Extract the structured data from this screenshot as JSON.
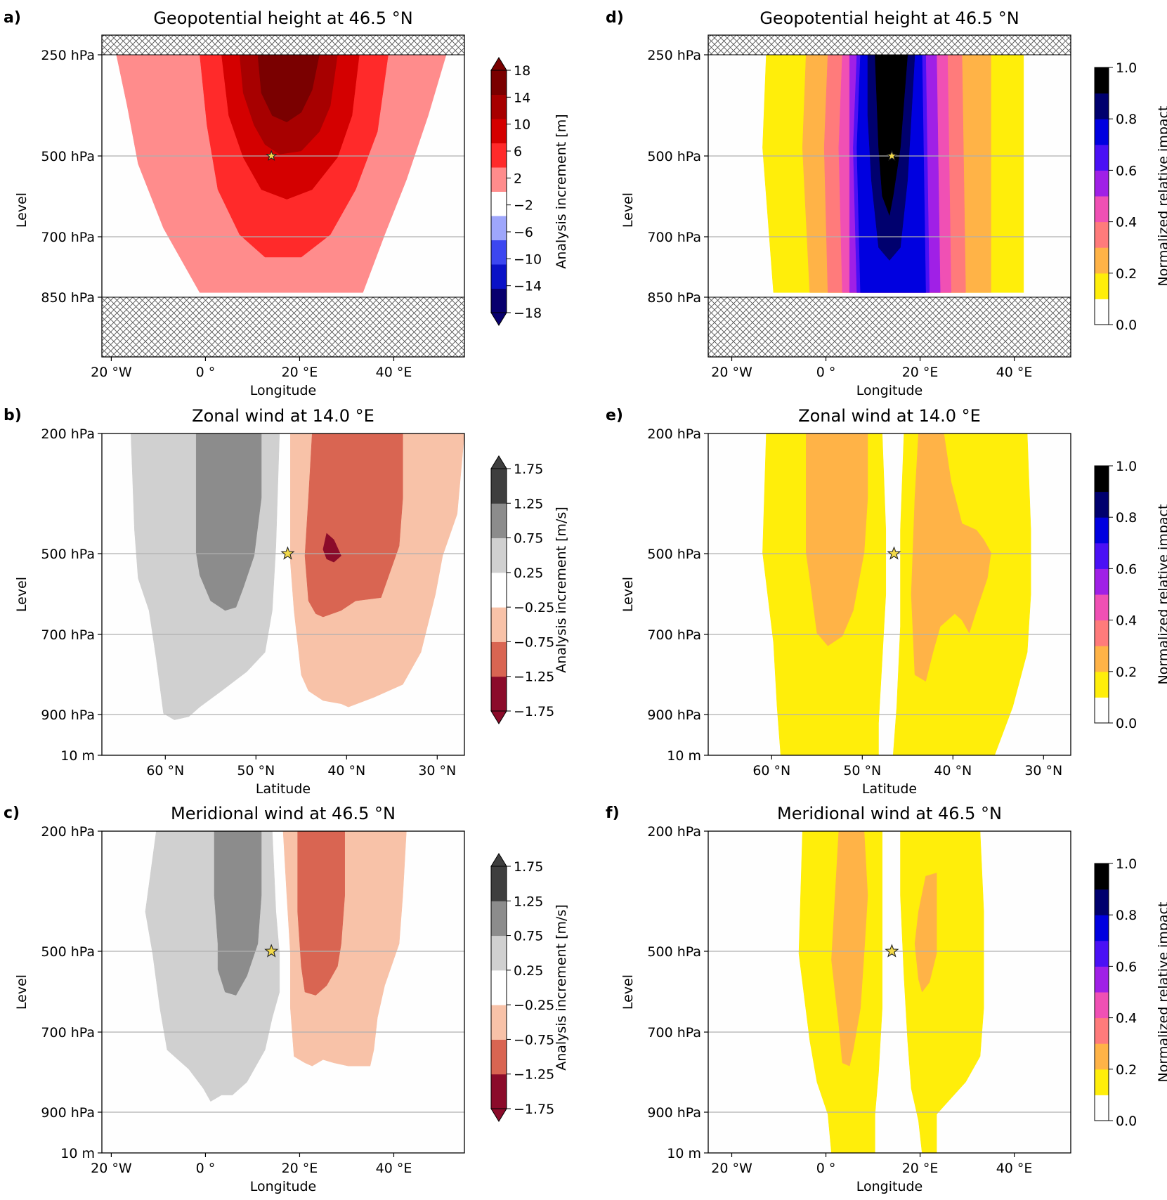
{
  "panels": [
    {
      "id": "a",
      "letter": "a)",
      "title": "Geopotential height at 46.5 °N",
      "kind": "increment",
      "field": "geopotential",
      "xlabel": "Longitude",
      "ylabel": "Level",
      "xticks": [
        "20 °W",
        "0 °",
        "20 °E",
        "40 °E"
      ],
      "xtick_values": [
        -20,
        0,
        20,
        40
      ],
      "xrange": [
        -22,
        55
      ],
      "levels": [
        "250 hPa",
        "500 hPa",
        "700 hPa",
        "850 hPa"
      ],
      "colorbar": {
        "label": "Analysis increment [m]",
        "extend": "both",
        "ticks": [
          "18",
          "14",
          "10",
          "6",
          "2",
          "−2",
          "−6",
          "−10",
          "−14",
          "−18"
        ],
        "colors": [
          "#08006e",
          "#0a12c7",
          "#3c47f0",
          "#9ea6fb",
          "#ffffff",
          "#ff8c8c",
          "#ff2a2a",
          "#d40000",
          "#a70000",
          "#7a0000"
        ]
      },
      "shaded_above": "250 hPa",
      "shaded_below": "850 hPa",
      "marker": {
        "lon": 14.0,
        "level": "500 hPa"
      }
    },
    {
      "id": "b",
      "letter": "b)",
      "title": "Zonal wind at 14.0 °E",
      "kind": "increment",
      "field": "zonal",
      "xlabel": "Latitude",
      "ylabel": "Level",
      "xticks": [
        "60 °N",
        "50 °N",
        "40 °N",
        "30 °N"
      ],
      "xtick_values": [
        60,
        50,
        40,
        30
      ],
      "xrange": [
        67,
        27
      ],
      "levels": [
        "200 hPa",
        "500 hPa",
        "700 hPa",
        "900 hPa",
        "10 m"
      ],
      "colorbar": {
        "label": "Analysis increment [m/s]",
        "extend": "both",
        "ticks": [
          "1.75",
          "1.25",
          "0.75",
          "0.25",
          "−0.25",
          "−0.75",
          "−1.25",
          "−1.75"
        ],
        "colors": [
          "#8b0b2a",
          "#d96552",
          "#f8c2a8",
          "#ffffff",
          "#d0d0d0",
          "#8c8c8c",
          "#3e3e3e"
        ]
      },
      "marker": {
        "lat": 46.5,
        "level": "500 hPa"
      }
    },
    {
      "id": "c",
      "letter": "c)",
      "title": "Meridional wind at 46.5 °N",
      "kind": "increment",
      "field": "meridional",
      "xlabel": "Longitude",
      "ylabel": "Level",
      "xticks": [
        "20 °W",
        "0 °",
        "20 °E",
        "40 °E"
      ],
      "xtick_values": [
        -20,
        0,
        20,
        40
      ],
      "xrange": [
        -22,
        55
      ],
      "levels": [
        "200 hPa",
        "500 hPa",
        "700 hPa",
        "900 hPa",
        "10 m"
      ],
      "colorbar": {
        "label": "Analysis increment [m/s]",
        "extend": "both",
        "ticks": [
          "1.75",
          "1.25",
          "0.75",
          "0.25",
          "−0.25",
          "−0.75",
          "−1.25",
          "−1.75"
        ],
        "colors": [
          "#8b0b2a",
          "#d96552",
          "#f8c2a8",
          "#ffffff",
          "#d0d0d0",
          "#8c8c8c",
          "#3e3e3e"
        ]
      },
      "marker": {
        "lon": 14.0,
        "level": "500 hPa"
      }
    },
    {
      "id": "d",
      "letter": "d)",
      "title": "Geopotential height at 46.5 °N",
      "kind": "impact",
      "field": "geopotential",
      "xlabel": "Longitude",
      "ylabel": "Level",
      "xticks": [
        "20 °W",
        "0 °",
        "20 °E",
        "40 °E"
      ],
      "xtick_values": [
        -20,
        0,
        20,
        40
      ],
      "xrange": [
        -25,
        52
      ],
      "levels": [
        "250 hPa",
        "500 hPa",
        "700 hPa",
        "850 hPa"
      ],
      "colorbar": {
        "label": "Normalized relative impact",
        "extend": "neither",
        "ticks": [
          "1.0",
          "0.8",
          "0.6",
          "0.4",
          "0.2",
          "0.0"
        ],
        "colors": [
          "#ffffff",
          "#ffee0a",
          "#ffb347",
          "#ff7b7b",
          "#f050b4",
          "#a020e6",
          "#4a10f5",
          "#0000e0",
          "#00006e",
          "#000000"
        ]
      },
      "shaded_above": "250 hPa",
      "shaded_below": "850 hPa",
      "marker": {
        "lon": 14.0,
        "level": "500 hPa"
      }
    },
    {
      "id": "e",
      "letter": "e)",
      "title": "Zonal wind at 14.0 °E",
      "kind": "impact",
      "field": "zonal",
      "xlabel": "Latitude",
      "ylabel": "Level",
      "xticks": [
        "60 °N",
        "50 °N",
        "40 °N",
        "30 °N"
      ],
      "xtick_values": [
        60,
        50,
        40,
        30
      ],
      "xrange": [
        67,
        27
      ],
      "levels": [
        "200 hPa",
        "500 hPa",
        "700 hPa",
        "900 hPa",
        "10 m"
      ],
      "colorbar": {
        "label": "Normalized relative impact",
        "extend": "neither",
        "ticks": [
          "1.0",
          "0.8",
          "0.6",
          "0.4",
          "0.2",
          "0.0"
        ],
        "colors": [
          "#ffffff",
          "#ffee0a",
          "#ffb347",
          "#ff7b7b",
          "#f050b4",
          "#a020e6",
          "#4a10f5",
          "#0000e0",
          "#00006e",
          "#000000"
        ]
      },
      "marker": {
        "lat": 46.5,
        "level": "500 hPa"
      }
    },
    {
      "id": "f",
      "letter": "f)",
      "title": "Meridional wind at 46.5 °N",
      "kind": "impact",
      "field": "meridional",
      "xlabel": "Longitude",
      "ylabel": "Level",
      "xticks": [
        "20 °W",
        "0 °",
        "20 °E",
        "40 °E"
      ],
      "xtick_values": [
        -20,
        0,
        20,
        40
      ],
      "xrange": [
        -25,
        52
      ],
      "levels": [
        "200 hPa",
        "500 hPa",
        "700 hPa",
        "900 hPa",
        "10 m"
      ],
      "colorbar": {
        "label": "Normalized relative impact",
        "extend": "neither",
        "ticks": [
          "1.0",
          "0.8",
          "0.6",
          "0.4",
          "0.2",
          "0.0"
        ],
        "colors": [
          "#ffffff",
          "#ffee0a",
          "#ffb347",
          "#ff7b7b",
          "#f050b4",
          "#a020e6",
          "#4a10f5",
          "#0000e0",
          "#00006e",
          "#000000"
        ]
      },
      "marker": {
        "lon": 14.0,
        "level": "500 hPa"
      }
    }
  ],
  "chart_data": [
    {
      "type": "heatmap",
      "panel": "a",
      "title": "Geopotential height at 46.5 °N",
      "xlabel": "Longitude",
      "ylabel": "Level",
      "x": [
        "20 °W",
        "0 °",
        "20 °E",
        "40 °E"
      ],
      "y": [
        "250 hPa",
        "500 hPa",
        "700 hPa",
        "850 hPa"
      ],
      "colorbar_label": "Analysis increment [m]",
      "colorbar_range": [
        -18,
        18
      ],
      "max_increment_region": {
        "center_lon": 14,
        "level": "250 hPa",
        "value_min": 18
      }
    },
    {
      "type": "heatmap",
      "panel": "b",
      "title": "Zonal wind at 14.0 °E",
      "xlabel": "Latitude",
      "ylabel": "Level",
      "x": [
        "60 °N",
        "50 °N",
        "40 °N",
        "30 °N"
      ],
      "y": [
        "200 hPa",
        "500 hPa",
        "700 hPa",
        "900 hPa",
        "10 m"
      ],
      "colorbar_label": "Analysis increment [m/s]",
      "colorbar_range": [
        -1.75,
        1.75
      ]
    },
    {
      "type": "heatmap",
      "panel": "c",
      "title": "Meridional wind at 46.5 °N",
      "xlabel": "Longitude",
      "ylabel": "Level",
      "x": [
        "20 °W",
        "0 °",
        "20 °E",
        "40 °E"
      ],
      "y": [
        "200 hPa",
        "500 hPa",
        "700 hPa",
        "900 hPa",
        "10 m"
      ],
      "colorbar_label": "Analysis increment [m/s]",
      "colorbar_range": [
        -1.75,
        1.75
      ]
    },
    {
      "type": "heatmap",
      "panel": "d",
      "title": "Geopotential height at 46.5 °N",
      "xlabel": "Longitude",
      "ylabel": "Level",
      "x": [
        "20 °W",
        "0 °",
        "20 °E",
        "40 °E"
      ],
      "y": [
        "250 hPa",
        "500 hPa",
        "700 hPa",
        "850 hPa"
      ],
      "colorbar_label": "Normalized relative impact",
      "colorbar_range": [
        0.0,
        1.0
      ]
    },
    {
      "type": "heatmap",
      "panel": "e",
      "title": "Zonal wind at 14.0 °E",
      "xlabel": "Latitude",
      "ylabel": "Level",
      "x": [
        "60 °N",
        "50 °N",
        "40 °N",
        "30 °N"
      ],
      "y": [
        "200 hPa",
        "500 hPa",
        "700 hPa",
        "900 hPa",
        "10 m"
      ],
      "colorbar_label": "Normalized relative impact",
      "colorbar_range": [
        0.0,
        1.0
      ]
    },
    {
      "type": "heatmap",
      "panel": "f",
      "title": "Meridional wind at 46.5 °N",
      "xlabel": "Longitude",
      "ylabel": "Level",
      "x": [
        "20 °W",
        "0 °",
        "20 °E",
        "40 °E"
      ],
      "y": [
        "200 hPa",
        "500 hPa",
        "700 hPa",
        "900 hPa",
        "10 m"
      ],
      "colorbar_label": "Normalized relative impact",
      "colorbar_range": [
        0.0,
        1.0
      ]
    }
  ]
}
